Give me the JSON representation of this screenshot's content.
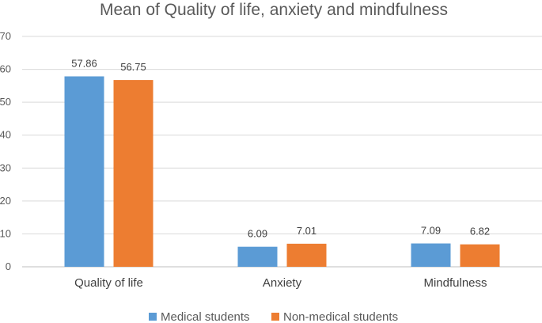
{
  "chart_data": {
    "type": "bar",
    "title": "Mean of Quality of life, anxiety and mindfulness",
    "categories": [
      "Quality of life",
      "Anxiety",
      "Mindfulness"
    ],
    "series": [
      {
        "name": "Medical students",
        "color": "#5b9bd5",
        "values": [
          57.86,
          6.09,
          7.09
        ],
        "labels": [
          "57.86",
          "6.09",
          "7.09"
        ]
      },
      {
        "name": "Non-medical students",
        "color": "#ed7d31",
        "values": [
          56.75,
          7.01,
          6.82
        ],
        "labels": [
          "56.75",
          "7.01",
          "6.82"
        ]
      }
    ],
    "ylim": [
      0,
      70
    ],
    "yticks": [
      "0",
      "10",
      "20",
      "30",
      "40",
      "50",
      "60",
      "70"
    ],
    "grid": true,
    "legend": "bottom"
  }
}
